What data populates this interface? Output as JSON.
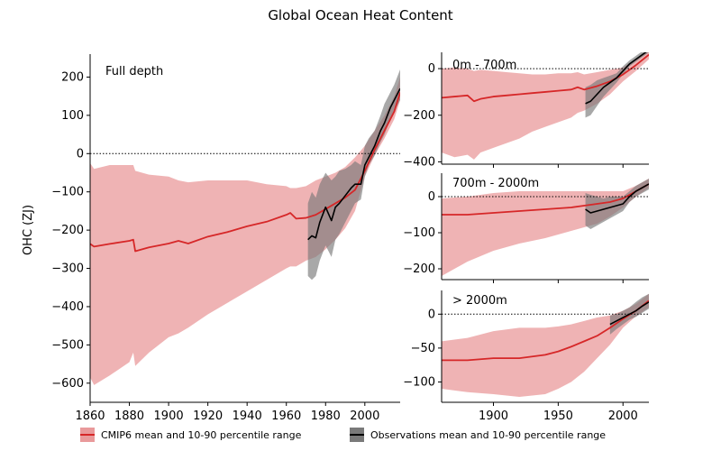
{
  "figure": {
    "title": "Global Ocean Heat Content",
    "ylabel": "OHC (ZJ)"
  },
  "colors": {
    "model_line": "#d62728",
    "model_band": "#e99a9b",
    "obs_line": "#000000",
    "obs_band": "#7a7a7a"
  },
  "legend": {
    "placement": "bottom-center",
    "items": [
      {
        "label": "CMIP6 mean and 10-90 percentile range",
        "color": "#d62728"
      },
      {
        "label": "Observations mean and 10-90 percentile range",
        "color": "#000000"
      }
    ]
  },
  "chart_data": [
    {
      "type": "line",
      "panel": "full",
      "annotation": "Full depth",
      "xlim": [
        1860,
        2018
      ],
      "ylim": [
        -650,
        260
      ],
      "xticks": [
        1860,
        1880,
        1900,
        1920,
        1940,
        1960,
        1980,
        2000
      ],
      "yticks": [
        -600,
        -500,
        -400,
        -300,
        -200,
        -100,
        0,
        100,
        200
      ],
      "ytick_labels": [
        "−600",
        "−500",
        "−400",
        "−300",
        "−200",
        "−100",
        "0",
        "100",
        "200"
      ],
      "zero_line": true,
      "grid": false,
      "series": [
        {
          "role": "model",
          "x": [
            1860,
            1862,
            1870,
            1880,
            1882,
            1883,
            1890,
            1900,
            1905,
            1910,
            1920,
            1930,
            1940,
            1950,
            1960,
            1962,
            1965,
            1970,
            1975,
            1980,
            1985,
            1990,
            1995,
            2000,
            2005,
            2010,
            2015,
            2018
          ],
          "mean": [
            -236,
            -243,
            -236,
            -228,
            -225,
            -255,
            -245,
            -235,
            -228,
            -235,
            -217,
            -205,
            -190,
            -178,
            -160,
            -155,
            -170,
            -168,
            -160,
            -145,
            -130,
            -115,
            -95,
            -45,
            10,
            60,
            110,
            160
          ],
          "low": [
            -585,
            -605,
            -580,
            -545,
            -520,
            -555,
            -520,
            -480,
            -470,
            -455,
            -420,
            -390,
            -360,
            -330,
            -300,
            -295,
            -295,
            -280,
            -270,
            -250,
            -225,
            -195,
            -150,
            -60,
            -5,
            40,
            90,
            140
          ],
          "high": [
            -25,
            -40,
            -30,
            -30,
            -30,
            -45,
            -55,
            -60,
            -70,
            -75,
            -70,
            -70,
            -70,
            -80,
            -85,
            -90,
            -90,
            -85,
            -70,
            -60,
            -50,
            -35,
            -10,
            20,
            60,
            100,
            150,
            200
          ]
        },
        {
          "role": "observations",
          "x": [
            1971,
            1973,
            1975,
            1977,
            1980,
            1983,
            1985,
            1987,
            1990,
            1993,
            1995,
            1998,
            2000,
            2002,
            2005,
            2008,
            2010,
            2013,
            2015,
            2018
          ],
          "mean": [
            -225,
            -215,
            -220,
            -180,
            -140,
            -175,
            -140,
            -130,
            -110,
            -90,
            -80,
            -80,
            -30,
            -10,
            20,
            60,
            80,
            120,
            140,
            170
          ],
          "low": [
            -320,
            -330,
            -320,
            -280,
            -240,
            -270,
            -225,
            -210,
            -180,
            -150,
            -130,
            -120,
            -60,
            -30,
            -5,
            30,
            50,
            90,
            110,
            140
          ],
          "high": [
            -130,
            -100,
            -115,
            -80,
            -50,
            -70,
            -60,
            -45,
            -40,
            -30,
            -20,
            -30,
            20,
            40,
            60,
            100,
            130,
            160,
            180,
            220
          ]
        }
      ]
    },
    {
      "type": "line",
      "panel": "0-700",
      "annotation": "0m - 700m",
      "xlim": [
        1860,
        2020
      ],
      "ylim": [
        -410,
        70
      ],
      "xticks": [
        1900,
        1950,
        2000
      ],
      "yticks": [
        -400,
        -200,
        0
      ],
      "ytick_labels": [
        "−400",
        "−200",
        "0"
      ],
      "zero_line": true,
      "grid": false,
      "series": [
        {
          "role": "model",
          "x": [
            1860,
            1870,
            1880,
            1885,
            1890,
            1900,
            1910,
            1920,
            1930,
            1940,
            1950,
            1960,
            1965,
            1970,
            1980,
            1990,
            2000,
            2010,
            2020
          ],
          "mean": [
            -125,
            -120,
            -115,
            -140,
            -130,
            -120,
            -115,
            -110,
            -105,
            -100,
            -95,
            -90,
            -80,
            -90,
            -75,
            -55,
            -25,
            15,
            60
          ],
          "low": [
            -360,
            -380,
            -370,
            -390,
            -360,
            -340,
            -320,
            -300,
            -270,
            -250,
            -230,
            -210,
            -190,
            -180,
            -150,
            -110,
            -55,
            -10,
            40
          ],
          "high": [
            0,
            5,
            0,
            -10,
            -5,
            -10,
            -15,
            -20,
            -25,
            -25,
            -20,
            -20,
            -15,
            -25,
            -15,
            -5,
            5,
            40,
            85
          ]
        },
        {
          "role": "observations",
          "x": [
            1971,
            1975,
            1980,
            1985,
            1990,
            1995,
            2000,
            2005,
            2010,
            2015,
            2020
          ],
          "mean": [
            -150,
            -140,
            -110,
            -80,
            -60,
            -40,
            -10,
            20,
            40,
            60,
            80
          ],
          "low": [
            -210,
            -200,
            -160,
            -120,
            -90,
            -60,
            -25,
            10,
            30,
            50,
            70
          ],
          "high": [
            -80,
            -70,
            -50,
            -40,
            -30,
            -20,
            10,
            35,
            55,
            75,
            95
          ]
        }
      ]
    },
    {
      "type": "line",
      "panel": "700-2000",
      "annotation": "700m - 2000m",
      "xlim": [
        1860,
        2020
      ],
      "ylim": [
        -230,
        65
      ],
      "xticks": [
        1900,
        1950,
        2000
      ],
      "yticks": [
        -200,
        -100,
        0
      ],
      "ytick_labels": [
        "−200",
        "−100",
        "0"
      ],
      "zero_line": true,
      "grid": false,
      "series": [
        {
          "role": "model",
          "x": [
            1860,
            1880,
            1900,
            1920,
            1940,
            1960,
            1970,
            1980,
            1990,
            2000,
            2010,
            2020
          ],
          "mean": [
            -50,
            -50,
            -45,
            -40,
            -35,
            -30,
            -25,
            -20,
            -15,
            -5,
            15,
            35
          ],
          "low": [
            -220,
            -180,
            -150,
            -130,
            -115,
            -95,
            -85,
            -75,
            -55,
            -30,
            0,
            25
          ],
          "high": [
            -5,
            0,
            10,
            15,
            15,
            15,
            15,
            15,
            15,
            15,
            30,
            50
          ]
        },
        {
          "role": "observations",
          "x": [
            1971,
            1975,
            1980,
            1985,
            1990,
            1995,
            2000,
            2005,
            2010,
            2015,
            2020
          ],
          "mean": [
            -35,
            -45,
            -40,
            -35,
            -30,
            -25,
            -20,
            0,
            15,
            25,
            35
          ],
          "low": [
            -80,
            -90,
            -80,
            -70,
            -60,
            -50,
            -40,
            -15,
            0,
            10,
            20
          ],
          "high": [
            10,
            5,
            0,
            -5,
            0,
            0,
            0,
            15,
            30,
            40,
            50
          ]
        }
      ]
    },
    {
      "type": "line",
      "panel": ">2000",
      "annotation": "> 2000m",
      "xlim": [
        1860,
        2020
      ],
      "ylim": [
        -130,
        35
      ],
      "xticks": [
        1900,
        1950,
        2000
      ],
      "yticks": [
        -100,
        -50,
        0
      ],
      "ytick_labels": [
        "−100",
        "−50",
        "0"
      ],
      "zero_line": true,
      "grid": false,
      "series": [
        {
          "role": "model",
          "x": [
            1860,
            1880,
            1900,
            1920,
            1940,
            1950,
            1960,
            1970,
            1980,
            1990,
            2000,
            2010,
            2020
          ],
          "mean": [
            -68,
            -68,
            -65,
            -65,
            -60,
            -55,
            -48,
            -40,
            -32,
            -20,
            -7,
            5,
            20
          ],
          "low": [
            -110,
            -115,
            -118,
            -122,
            -118,
            -110,
            -100,
            -85,
            -65,
            -45,
            -20,
            -3,
            10
          ],
          "high": [
            -40,
            -35,
            -25,
            -20,
            -20,
            -18,
            -15,
            -10,
            -5,
            -2,
            5,
            15,
            30
          ]
        },
        {
          "role": "observations",
          "x": [
            1990,
            1995,
            2000,
            2005,
            2010,
            2015,
            2020
          ],
          "mean": [
            -15,
            -10,
            -5,
            0,
            5,
            12,
            18
          ],
          "low": [
            -30,
            -22,
            -15,
            -8,
            -4,
            2,
            8
          ],
          "high": [
            -2,
            0,
            5,
            10,
            18,
            25,
            30
          ]
        }
      ]
    }
  ]
}
